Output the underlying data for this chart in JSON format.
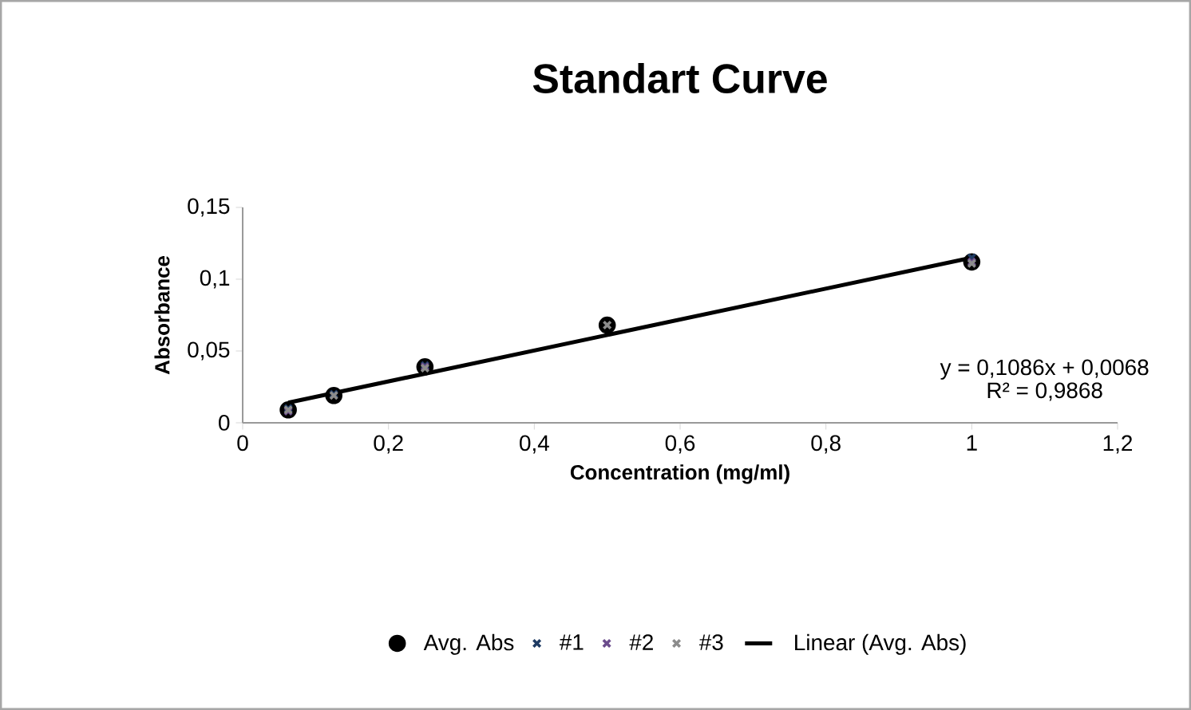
{
  "chart_data": {
    "type": "scatter",
    "title": "Standart Curve",
    "xlabel": "Concentration (mg/ml)",
    "ylabel": "Absorbance",
    "x": [
      0.0625,
      0.125,
      0.25,
      0.5,
      1
    ],
    "series": [
      {
        "name": "Avg. Abs",
        "color": "#000000",
        "marker": "circle",
        "values": [
          0.009,
          0.019,
          0.039,
          0.068,
          0.112
        ]
      },
      {
        "name": "#1",
        "color": "#1f3b63",
        "marker": "cross",
        "values": [
          0.01,
          0.02,
          0.04,
          null,
          0.115
        ]
      },
      {
        "name": "#2",
        "color": "#6b4c8c",
        "marker": "cross",
        "values": [
          0.008,
          null,
          0.039,
          null,
          0.112
        ]
      },
      {
        "name": "#3",
        "color": "#8c8c8c",
        "marker": "cross",
        "values": [
          0.009,
          0.019,
          0.038,
          0.068,
          0.111
        ]
      },
      {
        "name": "Linear (Avg. Abs)",
        "type": "line",
        "color": "#000000",
        "marker": "none",
        "line_style": "solid",
        "x": [
          0.0625,
          1
        ],
        "values": [
          0.014,
          0.115
        ]
      }
    ],
    "annotations": [
      "y = 0,1086x + 0,0068",
      "R² = 0,9868"
    ],
    "xlim": [
      0,
      1.2
    ],
    "ylim": [
      0,
      0.15
    ],
    "xticks": [
      0,
      {
        "value": 0.2,
        "label": "0,2"
      },
      {
        "value": 0.4,
        "label": "0,4"
      },
      {
        "value": 0.6,
        "label": "0,6"
      },
      {
        "value": 0.8,
        "label": "0,8"
      },
      1,
      {
        "value": 1.2,
        "label": "1,2"
      }
    ],
    "yticks": [
      0,
      {
        "value": 0.05,
        "label": "0,05"
      },
      {
        "value": 0.1,
        "label": "0,1"
      },
      {
        "value": 0.15,
        "label": "0,15"
      }
    ],
    "grid": false,
    "legend": "bottom"
  }
}
